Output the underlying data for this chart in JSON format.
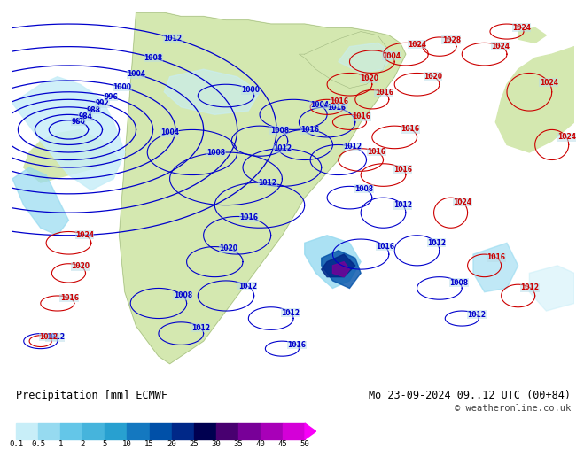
{
  "title_left": "Precipitation [mm] ECMWF",
  "title_right": "Mo 23-09-2024 09..12 UTC (00+84)",
  "copyright": "© weatheronline.co.uk",
  "colorbar_levels": [
    "0.1",
    "0.5",
    "1",
    "2",
    "5",
    "10",
    "15",
    "20",
    "25",
    "30",
    "35",
    "40",
    "45",
    "50"
  ],
  "colorbar_colors": [
    "#c8eef8",
    "#96daf0",
    "#64c6e8",
    "#46b4dc",
    "#28a0d0",
    "#1478c0",
    "#0050a8",
    "#002888",
    "#000050",
    "#480070",
    "#780098",
    "#a800b8",
    "#d400d8",
    "#f800f8"
  ],
  "ocean_color": "#b8dce8",
  "land_color": "#d4e8b0",
  "land_dark": "#c8dca0",
  "bg_color": "#ffffff",
  "precip_light1": "#c8eef8",
  "precip_light2": "#96daf0",
  "precip_med": "#46b4dc",
  "precip_blue": "#0050a8",
  "precip_dark": "#002888",
  "precip_purple": "#780098",
  "isobar_blue": "#0000cc",
  "isobar_red": "#cc0000",
  "isobar_lw": 0.9,
  "label_fs": 6.5,
  "title_fs": 8.5,
  "copy_fs": 7.5
}
